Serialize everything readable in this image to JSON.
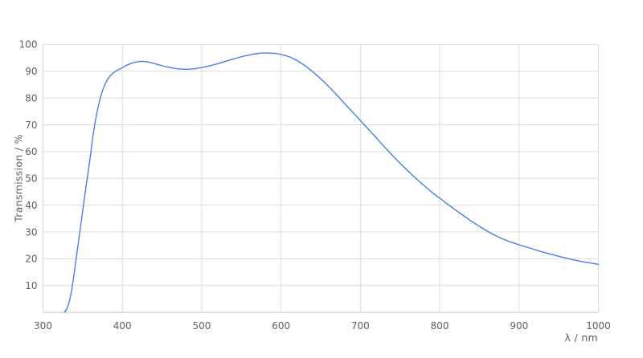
{
  "chart": {
    "y_axis_title": "Transmission / %",
    "x_axis_title": "λ / nm",
    "colors": {
      "line": "#4a7de8",
      "grid": "#dcdcdc",
      "axis": "#c9c9c9",
      "text": "#5f5f5f",
      "background": "#ffffff"
    }
  },
  "chart_data": {
    "type": "line",
    "title": "",
    "xlabel": "λ / nm",
    "ylabel": "Transmission / %",
    "xlim": [
      300,
      1000
    ],
    "ylim": [
      0,
      100
    ],
    "x_ticks": [
      300,
      400,
      500,
      600,
      700,
      800,
      900,
      1000
    ],
    "y_ticks": [
      10,
      20,
      30,
      40,
      50,
      60,
      70,
      80,
      90,
      100
    ],
    "grid": true,
    "legend": "none",
    "series": [
      {
        "name": "transmission",
        "x": [
          327,
          330,
          333,
          336,
          339,
          342,
          345,
          348,
          351,
          354,
          357,
          360,
          363,
          366,
          369,
          372,
          375,
          378,
          381,
          384,
          387,
          390,
          395,
          400,
          405,
          410,
          415,
          420,
          425,
          430,
          435,
          440,
          445,
          450,
          455,
          460,
          465,
          470,
          475,
          480,
          485,
          490,
          495,
          500,
          510,
          520,
          530,
          540,
          550,
          560,
          565,
          570,
          575,
          580,
          585,
          590,
          595,
          600,
          605,
          610,
          615,
          620,
          625,
          630,
          635,
          640,
          645,
          650,
          655,
          660,
          665,
          670,
          675,
          680,
          685,
          690,
          695,
          700,
          705,
          710,
          715,
          720,
          725,
          730,
          735,
          740,
          745,
          750,
          755,
          760,
          765,
          770,
          775,
          780,
          785,
          790,
          795,
          800,
          810,
          820,
          830,
          840,
          850,
          860,
          870,
          880,
          890,
          900,
          910,
          920,
          930,
          940,
          950,
          960,
          970,
          980,
          990,
          1000
        ],
        "y": [
          0,
          1.2,
          3.8,
          8,
          14,
          20.5,
          27,
          33.5,
          40,
          46.5,
          52.5,
          59,
          66,
          71.5,
          76,
          79.8,
          82.8,
          85,
          86.8,
          88,
          89,
          89.7,
          90.6,
          91.3,
          92.2,
          92.8,
          93.3,
          93.6,
          93.7,
          93.6,
          93.3,
          92.9,
          92.5,
          92.1,
          91.7,
          91.4,
          91.1,
          90.9,
          90.8,
          90.7,
          90.8,
          90.9,
          91.1,
          91.4,
          92,
          92.8,
          93.7,
          94.6,
          95.4,
          96.1,
          96.4,
          96.6,
          96.8,
          96.8,
          96.8,
          96.7,
          96.6,
          96.3,
          95.9,
          95.4,
          94.8,
          94,
          93.1,
          92.1,
          91,
          89.8,
          88.5,
          87.2,
          85.8,
          84.3,
          82.8,
          81.2,
          79.6,
          78,
          76.4,
          74.8,
          73.2,
          71.6,
          70,
          68.4,
          66.8,
          65.2,
          63.5,
          61.9,
          60.3,
          58.7,
          57.2,
          55.7,
          54.2,
          52.8,
          51.4,
          50,
          48.7,
          47.4,
          46.1,
          44.9,
          43.7,
          42.6,
          40.4,
          38.2,
          36.1,
          34,
          32.1,
          30.3,
          28.7,
          27.3,
          26.2,
          25.2,
          24.3,
          23.4,
          22.5,
          21.7,
          20.9,
          20.2,
          19.5,
          18.9,
          18.4,
          17.9
        ]
      }
    ]
  }
}
